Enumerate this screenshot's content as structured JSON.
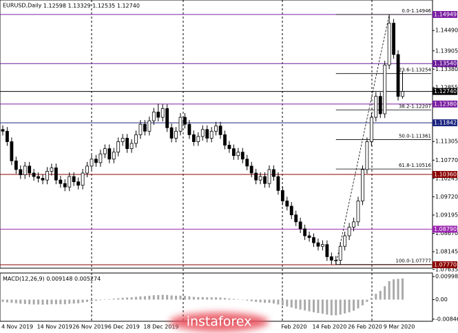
{
  "chart_data": [
    {
      "type": "candlestick",
      "title": "EURUSD,Daily",
      "last_bar_labels": [
        "1.12598",
        "1.13329",
        "1.12535",
        "1.12740"
      ],
      "categories": [
        "4 Nov 2019",
        null,
        null,
        null,
        null,
        null,
        null,
        null,
        "14 Nov 2019",
        null,
        null,
        null,
        null,
        null,
        null,
        null,
        "26 Nov 2019",
        null,
        null,
        null,
        null,
        null,
        null,
        null,
        "6 Dec 2019",
        null,
        null,
        null,
        null,
        null,
        null,
        null,
        "18 Dec 2019",
        null,
        null,
        null,
        null,
        null,
        null,
        null,
        null,
        null,
        null,
        null,
        null,
        null,
        null,
        null,
        null,
        null,
        null,
        null,
        null,
        null,
        null,
        null,
        null,
        null,
        null,
        null,
        null,
        null,
        null,
        "Feb 2020",
        null,
        null,
        null,
        null,
        null,
        null,
        "14 Feb 2020",
        null,
        null,
        null,
        null,
        null,
        null,
        null,
        "26 Feb 2020",
        null,
        null,
        null,
        null,
        null,
        null,
        null,
        "9 Mar 2020",
        null,
        null
      ],
      "candles": [
        [
          1.1165,
          1.1177,
          1.1148,
          1.116
        ],
        [
          1.116,
          1.1172,
          1.1118,
          1.113
        ],
        [
          1.113,
          1.1142,
          1.1063,
          1.1075
        ],
        [
          1.1075,
          1.1087,
          1.1038,
          1.105
        ],
        [
          1.105,
          1.1062,
          1.1023,
          1.1035
        ],
        [
          1.1035,
          1.1072,
          1.1023,
          1.106
        ],
        [
          1.106,
          1.1072,
          1.1028,
          1.104
        ],
        [
          1.104,
          1.1052,
          1.1018,
          1.103
        ],
        [
          1.103,
          1.1042,
          1.1013,
          1.1025
        ],
        [
          1.1025,
          1.1037,
          1.1008,
          1.102
        ],
        [
          1.102,
          1.1057,
          1.1008,
          1.1045
        ],
        [
          1.1045,
          1.1067,
          1.1033,
          1.1055
        ],
        [
          1.1055,
          1.1067,
          1.1008,
          1.102
        ],
        [
          1.102,
          1.1032,
          1.0998,
          1.101
        ],
        [
          1.101,
          1.1022,
          1.0988,
          1.1
        ],
        [
          1.1,
          1.1042,
          1.0988,
          1.103
        ],
        [
          1.103,
          1.1042,
          1.1003,
          1.1015
        ],
        [
          1.1015,
          1.1027,
          1.0993,
          1.1005
        ],
        [
          1.1005,
          1.1052,
          1.0993,
          1.104
        ],
        [
          1.104,
          1.1072,
          1.1028,
          1.106
        ],
        [
          1.106,
          1.1092,
          1.1048,
          1.108
        ],
        [
          1.108,
          1.1092,
          1.1058,
          1.107
        ],
        [
          1.107,
          1.1107,
          1.1058,
          1.1095
        ],
        [
          1.1095,
          1.1122,
          1.1083,
          1.111
        ],
        [
          1.111,
          1.1122,
          1.1068,
          1.108
        ],
        [
          1.108,
          1.1112,
          1.1068,
          1.11
        ],
        [
          1.11,
          1.1142,
          1.1088,
          1.113
        ],
        [
          1.113,
          1.1152,
          1.1118,
          1.114
        ],
        [
          1.114,
          1.1152,
          1.1098,
          1.111
        ],
        [
          1.111,
          1.1137,
          1.1098,
          1.1125
        ],
        [
          1.1125,
          1.1162,
          1.1113,
          1.115
        ],
        [
          1.115,
          1.1192,
          1.1138,
          1.118
        ],
        [
          1.118,
          1.1192,
          1.1148,
          1.116
        ],
        [
          1.116,
          1.1202,
          1.1148,
          1.119
        ],
        [
          1.119,
          1.1227,
          1.1178,
          1.1215
        ],
        [
          1.1215,
          1.1239,
          1.1188,
          1.12
        ],
        [
          1.12,
          1.1237,
          1.1188,
          1.1225
        ],
        [
          1.1225,
          1.1237,
          1.1158,
          1.117
        ],
        [
          1.117,
          1.1182,
          1.1128,
          1.114
        ],
        [
          1.114,
          1.1172,
          1.1128,
          1.116
        ],
        [
          1.116,
          1.1212,
          1.1148,
          1.12
        ],
        [
          1.12,
          1.1212,
          1.1168,
          1.118
        ],
        [
          1.118,
          1.1192,
          1.1138,
          1.115
        ],
        [
          1.115,
          1.1162,
          1.1118,
          1.113
        ],
        [
          1.113,
          1.1157,
          1.1118,
          1.1145
        ],
        [
          1.1145,
          1.1177,
          1.1133,
          1.1165
        ],
        [
          1.1165,
          1.1177,
          1.1128,
          1.114
        ],
        [
          1.114,
          1.1172,
          1.1128,
          1.116
        ],
        [
          1.116,
          1.1187,
          1.1148,
          1.1175
        ],
        [
          1.1175,
          1.1187,
          1.1138,
          1.115
        ],
        [
          1.115,
          1.1162,
          1.1108,
          1.112
        ],
        [
          1.112,
          1.1132,
          1.1098,
          1.111
        ],
        [
          1.111,
          1.1122,
          1.1078,
          1.109
        ],
        [
          1.109,
          1.1112,
          1.1078,
          1.11
        ],
        [
          1.11,
          1.1112,
          1.1068,
          1.108
        ],
        [
          1.108,
          1.1092,
          1.1048,
          1.106
        ],
        [
          1.106,
          1.1072,
          1.1028,
          1.104
        ],
        [
          1.104,
          1.1052,
          1.1008,
          1.102
        ],
        [
          1.102,
          1.1042,
          1.1008,
          1.103
        ],
        [
          1.103,
          1.1042,
          1.0998,
          1.101
        ],
        [
          1.101,
          1.1062,
          1.0998,
          1.105
        ],
        [
          1.105,
          1.1062,
          1.1018,
          1.103
        ],
        [
          1.103,
          1.1042,
          1.0978,
          1.099
        ],
        [
          1.099,
          1.1002,
          1.0948,
          1.096
        ],
        [
          1.096,
          1.0972,
          1.0933,
          1.0945
        ],
        [
          1.0945,
          1.0957,
          1.0908,
          1.092
        ],
        [
          1.092,
          1.0932,
          1.0888,
          1.09
        ],
        [
          1.09,
          1.0912,
          1.0868,
          1.088
        ],
        [
          1.088,
          1.0892,
          1.0848,
          1.086
        ],
        [
          1.086,
          1.0872,
          1.0843,
          1.0855
        ],
        [
          1.0855,
          1.0867,
          1.0828,
          1.084
        ],
        [
          1.084,
          1.0852,
          1.0818,
          1.083
        ],
        [
          1.083,
          1.0847,
          1.0818,
          1.0835
        ],
        [
          1.0835,
          1.0847,
          1.0788,
          1.08
        ],
        [
          1.08,
          1.0812,
          1.0778,
          1.079
        ],
        [
          1.079,
          1.0802,
          1.0778,
          1.079
        ],
        [
          1.079,
          1.0842,
          1.0778,
          1.083
        ],
        [
          1.083,
          1.0872,
          1.0818,
          1.086
        ],
        [
          1.086,
          1.0897,
          1.0848,
          1.0885
        ],
        [
          1.0885,
          1.0912,
          1.0873,
          1.09
        ],
        [
          1.09,
          1.0972,
          1.0888,
          1.096
        ],
        [
          1.096,
          1.1062,
          1.0948,
          1.105
        ],
        [
          1.105,
          1.1142,
          1.1038,
          1.113
        ],
        [
          1.113,
          1.1212,
          1.1118,
          1.12
        ],
        [
          1.12,
          1.1272,
          1.1188,
          1.126
        ],
        [
          1.126,
          1.1272,
          1.1198,
          1.121
        ],
        [
          1.121,
          1.1362,
          1.1198,
          1.135
        ],
        [
          1.135,
          1.1495,
          1.1338,
          1.147
        ],
        [
          1.147,
          1.1482,
          1.1368,
          1.138
        ],
        [
          1.138,
          1.1392,
          1.1248,
          1.12598
        ],
        [
          1.12598,
          1.13329,
          1.12535,
          1.1274
        ]
      ],
      "ylim": [
        1.07671,
        1.15364
      ],
      "yticks": [
        {
          "value": 1.1449,
          "label": "1.14490"
        },
        1.13905,
        {
          "value": 1.1338,
          "label": "1.13380"
        },
        1.12855,
        1.11305,
        {
          "value": 1.1077,
          "label": "1.10770"
        },
        1.10245,
        {
          "value": 1.0972,
          "label": "1.09720"
        },
        1.09195,
        {
          "value": 1.0867,
          "label": "1.08670"
        },
        1.08145,
        1.07635
      ],
      "levels": [
        {
          "value": 1.14949,
          "color": "#7b1fa2"
        },
        {
          "value": 1.1354,
          "label": "1.13540",
          "color": "#6a1b9a"
        },
        {
          "value": 1.1274,
          "label": "1.12740",
          "color": "#000000"
        },
        {
          "value": 1.1238,
          "label": "1.12380",
          "color": "#7b1fa2"
        },
        {
          "value": 1.11842,
          "color": "#1a237e"
        },
        {
          "value": 1.1036,
          "label": "1.10360",
          "color": "#8b0000"
        },
        {
          "value": 1.0879,
          "label": "1.08790",
          "color": "#9c27b0"
        },
        {
          "value": 1.0777,
          "label": "1.07770",
          "color": "#8b0000"
        }
      ],
      "fib_levels": [
        {
          "value": 1.14946,
          "label": "0.0-1.14946"
        },
        {
          "value": 1.13254,
          "label": "23.6-1.13254"
        },
        {
          "value": 1.12207,
          "label": "38.2-1.12207"
        },
        {
          "value": 1.11361,
          "label": "50.0-1.11361"
        },
        {
          "value": 1.10516,
          "label": "61.8-1.10516"
        },
        {
          "value": 1.07777,
          "label": "100.0-1.07777"
        }
      ]
    },
    {
      "type": "bar",
      "title": "MACD(12,26,9)",
      "color": "#a9a9a9",
      "signal_value": 0.005274,
      "values": [
        -0.001,
        -0.0012,
        -0.0014,
        -0.0016,
        -0.0018,
        -0.0019,
        -0.002,
        -0.0021,
        -0.0021,
        -0.0022,
        -0.0021,
        -0.002,
        -0.002,
        -0.002,
        -0.002,
        -0.0018,
        -0.0017,
        -0.0016,
        -0.0013,
        -0.001,
        -0.0007,
        -0.0005,
        -0.0002,
        0.0001,
        0.0002,
        0.0004,
        0.0006,
        0.0008,
        0.0009,
        0.001,
        0.0012,
        0.0014,
        0.0015,
        0.0017,
        0.0019,
        0.002,
        0.0021,
        0.002,
        0.0018,
        0.0017,
        0.0017,
        0.0016,
        0.0014,
        0.0012,
        0.0011,
        0.0011,
        0.001,
        0.001,
        0.001,
        0.0009,
        0.0007,
        0.0005,
        0.0003,
        0.0001,
        -0.0001,
        -0.0004,
        -0.0007,
        -0.001,
        -0.0012,
        -0.0014,
        -0.0014,
        -0.0017,
        -0.0021,
        -0.0025,
        -0.003,
        -0.0034,
        -0.0039,
        -0.0043,
        -0.0047,
        -0.0051,
        -0.0055,
        -0.0058,
        -0.0061,
        -0.0065,
        -0.0068,
        -0.0068,
        -0.0065,
        -0.006,
        -0.0055,
        -0.0048,
        -0.0038,
        -0.0025,
        -0.001,
        0.0008,
        0.0025,
        0.0038,
        0.0058,
        0.008,
        0.0088,
        0.009,
        0.009148
      ],
      "ylim": [
        -0.009388,
        0.011525
      ],
      "yticks": [
        0.009987,
        {
          "value": 0,
          "label": "0.00"
        },
        -0.008465
      ]
    }
  ],
  "watermark": "instaforex"
}
